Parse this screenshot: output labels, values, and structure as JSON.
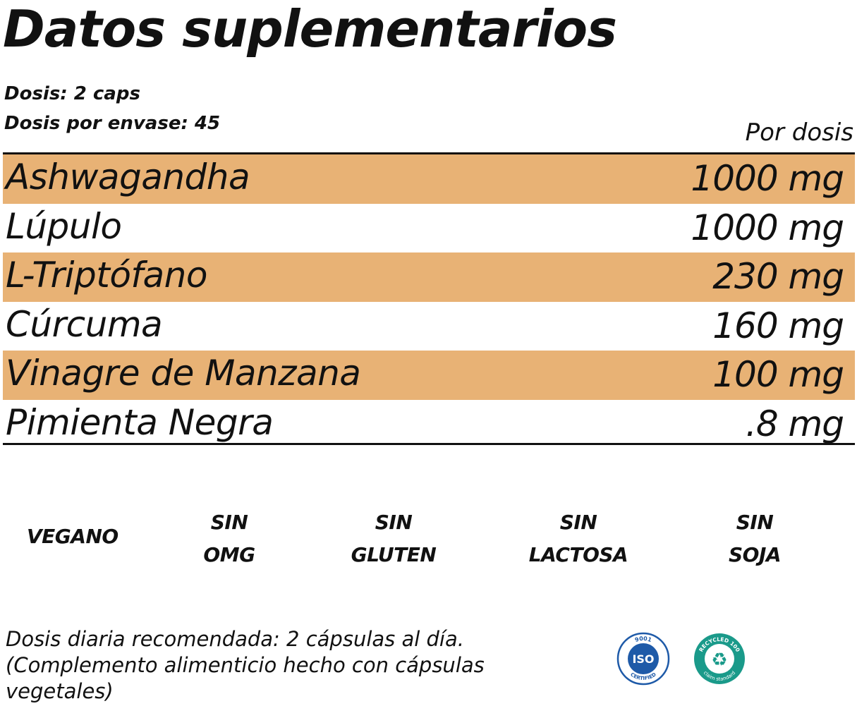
{
  "title": "Datos suplementarios",
  "dose": {
    "serving": "Dosis: 2 caps",
    "servings_per_container": "Dosis por envase: 45",
    "per_dose_header": "Por dosis"
  },
  "ingredients": [
    {
      "name": "Ashwagandha",
      "amount": "1000 mg",
      "shaded": true
    },
    {
      "name": "Lúpulo",
      "amount": "1000 mg",
      "shaded": false
    },
    {
      "name": "L-Triptófano",
      "amount": "230 mg",
      "shaded": true
    },
    {
      "name": "Cúrcuma",
      "amount": "160 mg",
      "shaded": false
    },
    {
      "name": "Vinagre de Manzana",
      "amount": "100 mg",
      "shaded": true
    },
    {
      "name": "Pimienta Negra",
      "amount": ".8 mg",
      "shaded": false
    }
  ],
  "badges": [
    {
      "line1": "VEGANO",
      "line2": ""
    },
    {
      "line1": "SIN",
      "line2": "OMG"
    },
    {
      "line1": "SIN",
      "line2": "GLUTEN"
    },
    {
      "line1": "SIN",
      "line2": "LACTOSA"
    },
    {
      "line1": "SIN",
      "line2": "SOJA"
    }
  ],
  "footnote": {
    "line1": "Dosis diaria recomendada: 2 cápsulas al día.",
    "line2": "(Complemento alimenticio hecho con cápsulas",
    "line3": "vegetales)"
  },
  "logos": {
    "iso": {
      "top": "9001",
      "center": "ISO",
      "bottom": "CERTIFIED",
      "color": "#1e5aa8"
    },
    "recycled": {
      "top": "RECYCLED 100",
      "bottom": "claim standard",
      "color": "#1a9a8a"
    }
  },
  "colors": {
    "row_shade": "#e8b275",
    "text": "#111111"
  }
}
